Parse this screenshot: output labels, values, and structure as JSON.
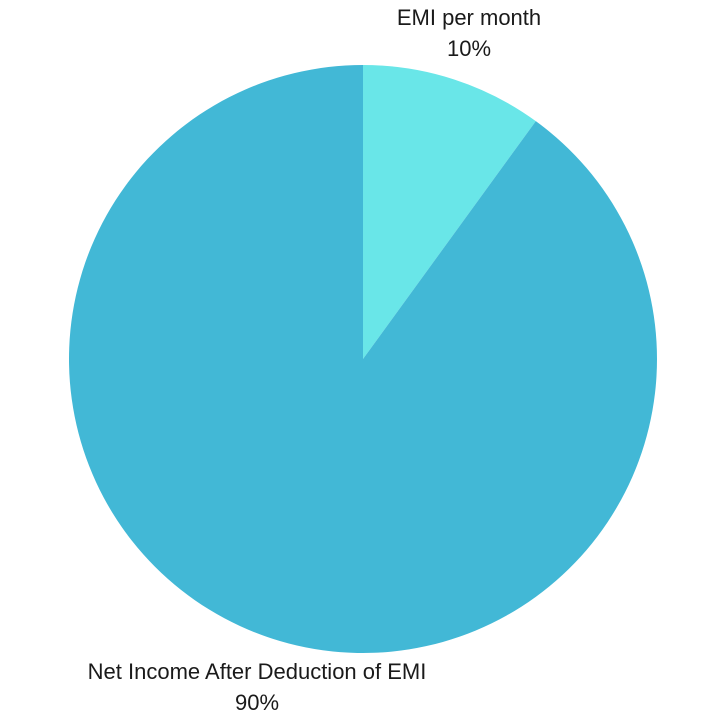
{
  "chart_data": {
    "type": "pie",
    "start_angle_deg": 0,
    "direction": "clockwise",
    "slices": [
      {
        "label": "EMI per month",
        "value": 10,
        "value_label": "10%",
        "color": "#69E6E8"
      },
      {
        "label": "Net Income After Deduction of EMI",
        "value": 90,
        "value_label": "90%",
        "color": "#42B8D6"
      }
    ],
    "legend": "none",
    "background": "#ffffff"
  }
}
